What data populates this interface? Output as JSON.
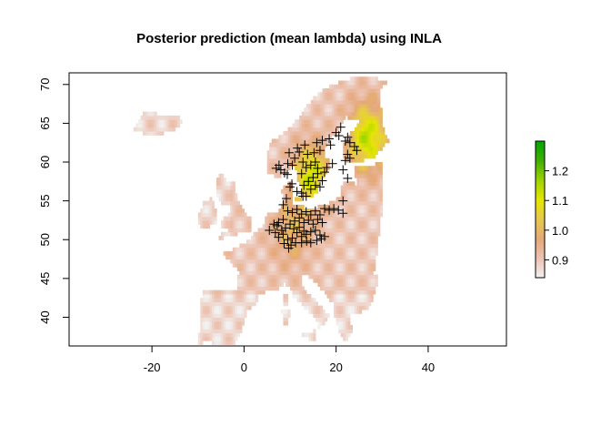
{
  "title": "Posterior prediction (mean lambda) using INLA",
  "chart_data": {
    "type": "heatmap",
    "title": "Posterior prediction (mean lambda) using INLA",
    "xlabel": "",
    "ylabel": "",
    "xlim": [
      -38,
      57
    ],
    "ylim": [
      36.3,
      71.5
    ],
    "x_ticks": [
      -20,
      0,
      20,
      40
    ],
    "y_ticks": [
      40,
      45,
      50,
      55,
      60,
      65,
      70
    ],
    "grid": false,
    "colorbar": {
      "position": "right",
      "range": [
        0.84,
        1.3
      ],
      "ticks": [
        0.9,
        1.0,
        1.1,
        1.2
      ],
      "colors": [
        "#f2f2f2",
        "#ecc3b3",
        "#e5a879",
        "#e6c84d",
        "#e6e600",
        "#9ed400",
        "#41b000",
        "#00a600"
      ]
    },
    "marker": "+",
    "occurrence_points": [
      [
        7.0,
        59.2
      ],
      [
        8.0,
        59.0
      ],
      [
        8.8,
        58.6
      ],
      [
        9.5,
        59.8
      ],
      [
        10.5,
        59.6
      ],
      [
        11.0,
        60.5
      ],
      [
        9.8,
        61.2
      ],
      [
        12.0,
        61.3
      ],
      [
        12.8,
        60.0
      ],
      [
        13.5,
        59.3
      ],
      [
        14.5,
        59.6
      ],
      [
        15.5,
        60.0
      ],
      [
        16.0,
        59.2
      ],
      [
        15.0,
        58.0
      ],
      [
        14.0,
        57.5
      ],
      [
        13.0,
        57.0
      ],
      [
        12.5,
        56.0
      ],
      [
        14.5,
        56.5
      ],
      [
        15.5,
        57.0
      ],
      [
        16.5,
        56.8
      ],
      [
        17.5,
        58.7
      ],
      [
        18.0,
        59.3
      ],
      [
        16.5,
        61.5
      ],
      [
        17.0,
        62.8
      ],
      [
        18.5,
        63.0
      ],
      [
        20.0,
        63.8
      ],
      [
        21.0,
        64.5
      ],
      [
        22.5,
        63.2
      ],
      [
        23.0,
        62.5
      ],
      [
        24.5,
        61.5
      ],
      [
        22.5,
        61.0
      ],
      [
        22.0,
        60.2
      ],
      [
        23.0,
        60.5
      ],
      [
        21.5,
        59.0
      ],
      [
        22.5,
        57.9
      ],
      [
        21.5,
        55.0
      ],
      [
        13.5,
        55.6
      ],
      [
        12.8,
        55.6
      ],
      [
        11.5,
        56.2
      ],
      [
        10.0,
        56.8
      ],
      [
        9.2,
        55.3
      ],
      [
        8.5,
        54.5
      ],
      [
        9.5,
        53.7
      ],
      [
        10.5,
        53.5
      ],
      [
        11.5,
        53.9
      ],
      [
        12.5,
        53.3
      ],
      [
        13.5,
        53.6
      ],
      [
        14.5,
        53.2
      ],
      [
        15.5,
        53.7
      ],
      [
        16.5,
        53.2
      ],
      [
        17.5,
        54.0
      ],
      [
        18.5,
        53.8
      ],
      [
        19.5,
        54.0
      ],
      [
        20.5,
        53.8
      ],
      [
        21.5,
        53.4
      ],
      [
        7.5,
        52.2
      ],
      [
        8.5,
        52.6
      ],
      [
        6.5,
        52.0
      ],
      [
        5.5,
        51.2
      ],
      [
        6.8,
        50.9
      ],
      [
        7.5,
        50.3
      ],
      [
        8.5,
        50.7
      ],
      [
        9.5,
        50.0
      ],
      [
        10.5,
        50.2
      ],
      [
        11.5,
        50.9
      ],
      [
        12.5,
        50.4
      ],
      [
        13.5,
        50.7
      ],
      [
        14.5,
        51.0
      ],
      [
        15.5,
        51.2
      ],
      [
        16.5,
        50.6
      ],
      [
        17.5,
        50.4
      ],
      [
        9.0,
        51.5
      ],
      [
        10.0,
        52.0
      ],
      [
        11.0,
        52.4
      ],
      [
        12.0,
        52.8
      ],
      [
        13.0,
        52.2
      ],
      [
        14.0,
        52.5
      ],
      [
        15.0,
        52.0
      ],
      [
        16.0,
        52.6
      ],
      [
        17.0,
        52.2
      ],
      [
        10.2,
        49.3
      ],
      [
        11.2,
        49.6
      ],
      [
        12.5,
        49.6
      ],
      [
        13.6,
        49.8
      ],
      [
        14.5,
        49.6
      ],
      [
        8.7,
        49.5
      ],
      [
        9.7,
        48.9
      ],
      [
        7.2,
        51.8
      ],
      [
        8.2,
        51.2
      ],
      [
        10.8,
        51.4
      ],
      [
        12.0,
        51.6
      ],
      [
        13.0,
        51.1
      ],
      [
        15.8,
        49.9
      ],
      [
        16.8,
        50.1
      ],
      [
        11.6,
        61.8
      ],
      [
        13.2,
        62.2
      ],
      [
        13.8,
        61.0
      ],
      [
        15.2,
        61.2
      ],
      [
        15.8,
        62.5
      ],
      [
        18.8,
        62.2
      ],
      [
        22.0,
        62.7
      ],
      [
        12.5,
        58.5
      ],
      [
        16.0,
        58.5
      ],
      [
        17.0,
        57.6
      ],
      [
        10.4,
        57.2
      ],
      [
        19.2,
        59.8
      ],
      [
        20.6,
        63.4
      ],
      [
        24.0,
        62.0
      ],
      [
        9.4,
        58.4
      ],
      [
        7.6,
        59.6
      ]
    ]
  }
}
